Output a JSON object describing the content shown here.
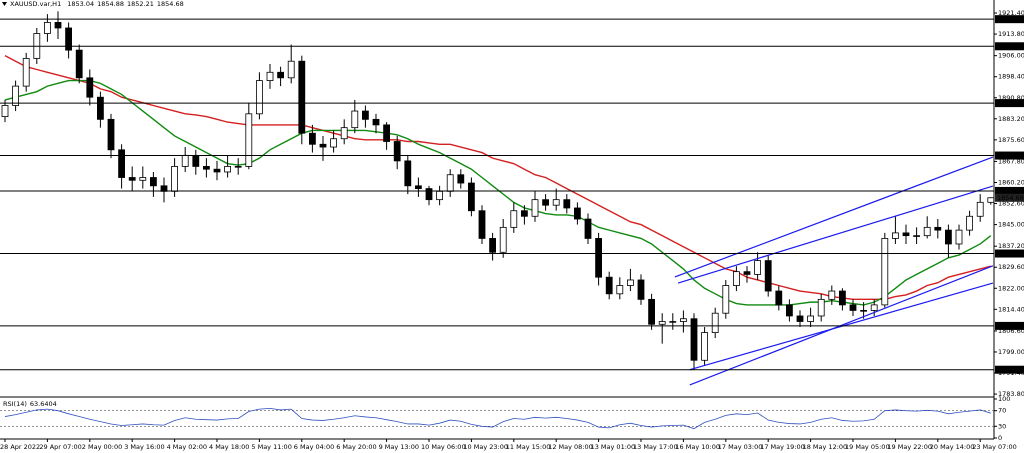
{
  "chart_data": {
    "type": "candlestick",
    "title": "XAUUSD.var,H1",
    "up_color": "#ffffff",
    "down_color": "#000000",
    "ylim": [
      1783.1,
      1926.1
    ],
    "yticks": [
      {
        "value": 1921.4,
        "label": "1921.40"
      },
      {
        "value": 1913.8,
        "label": "1913.80"
      },
      {
        "value": 1906,
        "label": "1906.00"
      },
      {
        "value": 1898.4,
        "label": "1898.40"
      },
      {
        "value": 1890.8,
        "label": "1890.80"
      },
      {
        "value": 1883.2,
        "label": "1883.20"
      },
      {
        "value": 1875.6,
        "label": "1875.60"
      },
      {
        "value": 1867.8,
        "label": "1867.80"
      },
      {
        "value": 1860.2,
        "label": "1860.20"
      },
      {
        "value": 1852.6,
        "label": "1852.60"
      },
      {
        "value": 1845,
        "label": "1845.00"
      },
      {
        "value": 1837.2,
        "label": "1837.20"
      },
      {
        "value": 1829.6,
        "label": "1829.60"
      },
      {
        "value": 1822,
        "label": "1822.00"
      },
      {
        "value": 1814.4,
        "label": "1814.40"
      },
      {
        "value": 1806.6,
        "label": "1806.60"
      },
      {
        "value": 1799,
        "label": "1799.00"
      },
      {
        "value": 1791.4,
        "label": "1791.40"
      },
      {
        "value": 1783.8,
        "label": "1783.80"
      }
    ],
    "price_lines": [
      1919.18,
      1909.39,
      1888.87,
      1869.93,
      1857.15,
      1834.55,
      1808.41,
      1792.59
    ],
    "categories": [
      "28 Apr 2022",
      null,
      null,
      null,
      "29 Apr 07:00",
      null,
      null,
      null,
      "2 May 00:00",
      null,
      null,
      null,
      "3 May 16:00",
      null,
      null,
      null,
      "4 May 02:00",
      null,
      null,
      null,
      "4 May 18:00",
      null,
      null,
      null,
      "5 May 11:00",
      null,
      null,
      null,
      "6 May 04:00",
      null,
      null,
      null,
      "6 May 20:00",
      null,
      null,
      null,
      "9 May 13:00",
      null,
      null,
      null,
      "10 May 06:00",
      null,
      null,
      null,
      "10 May 23:00",
      null,
      null,
      null,
      "11 May 15:00",
      null,
      null,
      null,
      "12 May 08:00",
      null,
      null,
      null,
      "13 May 01:00",
      null,
      null,
      null,
      "13 May 17:00",
      null,
      null,
      null,
      "16 May 10:00",
      null,
      null,
      null,
      "17 May 03:00",
      null,
      null,
      null,
      "17 May 19:00",
      null,
      null,
      null,
      "18 May 12:00",
      null,
      null,
      null,
      "19 May 05:00",
      null,
      null,
      null,
      "19 May 22:00",
      null,
      null,
      null,
      "20 May 14:00",
      null,
      null,
      null,
      "23 May 07:00",
      null
    ],
    "candles": [
      [
        1884,
        1890,
        1882,
        1888
      ],
      [
        1888,
        1897,
        1886,
        1895
      ],
      [
        1895,
        1907,
        1893,
        1905
      ],
      [
        1905,
        1916,
        1903,
        1914
      ],
      [
        1914,
        1921,
        1911,
        1918
      ],
      [
        1918,
        1922,
        1912,
        1916
      ],
      [
        1916,
        1918,
        1905,
        1908
      ],
      [
        1908,
        1910,
        1896,
        1898
      ],
      [
        1898,
        1901,
        1888,
        1891
      ],
      [
        1891,
        1893,
        1880,
        1883
      ],
      [
        1883,
        1885,
        1869,
        1872
      ],
      [
        1872,
        1874,
        1858,
        1862
      ],
      [
        1862,
        1866,
        1857,
        1861
      ],
      [
        1861,
        1866,
        1858,
        1862
      ],
      [
        1862,
        1864,
        1855,
        1859
      ],
      [
        1859,
        1862,
        1853,
        1857
      ],
      [
        1857,
        1869,
        1855,
        1866
      ],
      [
        1866,
        1873,
        1864,
        1870
      ],
      [
        1870,
        1872,
        1863,
        1866
      ],
      [
        1866,
        1869,
        1862,
        1865
      ],
      [
        1865,
        1868,
        1861,
        1864
      ],
      [
        1864,
        1870,
        1862,
        1866
      ],
      [
        1866,
        1869,
        1863,
        1866
      ],
      [
        1866,
        1889,
        1865,
        1885
      ],
      [
        1885,
        1900,
        1883,
        1897
      ],
      [
        1897,
        1903,
        1894,
        1900
      ],
      [
        1900,
        1902,
        1895,
        1898
      ],
      [
        1898,
        1910,
        1896,
        1904
      ],
      [
        1904,
        1906,
        1874,
        1878
      ],
      [
        1878,
        1881,
        1871,
        1874
      ],
      [
        1874,
        1877,
        1868,
        1873
      ],
      [
        1873,
        1879,
        1871,
        1876
      ],
      [
        1876,
        1883,
        1874,
        1880
      ],
      [
        1880,
        1890,
        1878,
        1886
      ],
      [
        1886,
        1888,
        1880,
        1883
      ],
      [
        1883,
        1885,
        1878,
        1881
      ],
      [
        1881,
        1882,
        1872,
        1875
      ],
      [
        1875,
        1877,
        1865,
        1868
      ],
      [
        1868,
        1870,
        1856,
        1859
      ],
      [
        1859,
        1862,
        1855,
        1858
      ],
      [
        1858,
        1859,
        1852,
        1854
      ],
      [
        1854,
        1859,
        1852,
        1857
      ],
      [
        1857,
        1865,
        1855,
        1863
      ],
      [
        1863,
        1865,
        1858,
        1860
      ],
      [
        1860,
        1862,
        1848,
        1850
      ],
      [
        1850,
        1852,
        1838,
        1840
      ],
      [
        1840,
        1842,
        1832,
        1835
      ],
      [
        1835,
        1847,
        1833,
        1844
      ],
      [
        1844,
        1853,
        1842,
        1850
      ],
      [
        1850,
        1852,
        1845,
        1848
      ],
      [
        1848,
        1857,
        1846,
        1854
      ],
      [
        1854,
        1856,
        1850,
        1852
      ],
      [
        1852,
        1858,
        1850,
        1854
      ],
      [
        1854,
        1856,
        1849,
        1851
      ],
      [
        1851,
        1853,
        1845,
        1847
      ],
      [
        1847,
        1849,
        1838,
        1840
      ],
      [
        1840,
        1842,
        1823,
        1826
      ],
      [
        1826,
        1828,
        1818,
        1820
      ],
      [
        1820,
        1826,
        1818,
        1823
      ],
      [
        1823,
        1829,
        1821,
        1825
      ],
      [
        1825,
        1827,
        1816,
        1818
      ],
      [
        1818,
        1820,
        1807,
        1809
      ],
      [
        1809,
        1813,
        1802,
        1810
      ],
      [
        1810,
        1813,
        1807,
        1810
      ],
      [
        1810,
        1814,
        1806,
        1811
      ],
      [
        1811,
        1813,
        1792.59,
        1796
      ],
      [
        1796,
        1808,
        1794,
        1806
      ],
      [
        1806,
        1815,
        1804,
        1813
      ],
      [
        1813,
        1825,
        1811,
        1823
      ],
      [
        1823,
        1830,
        1821,
        1828
      ],
      [
        1828,
        1830,
        1824,
        1827
      ],
      [
        1827,
        1835,
        1825,
        1832
      ],
      [
        1832,
        1834,
        1819,
        1821
      ],
      [
        1821,
        1823,
        1814,
        1816
      ],
      [
        1816,
        1818,
        1810,
        1812
      ],
      [
        1812,
        1814,
        1808,
        1810
      ],
      [
        1810,
        1815,
        1808,
        1812
      ],
      [
        1812,
        1820,
        1810,
        1818
      ],
      [
        1818,
        1823,
        1816,
        1821
      ],
      [
        1821,
        1822,
        1814,
        1816
      ],
      [
        1816,
        1818,
        1812,
        1814
      ],
      [
        1814,
        1817,
        1811,
        1814
      ],
      [
        1814,
        1818,
        1812,
        1816
      ],
      [
        1816,
        1842,
        1815,
        1840
      ],
      [
        1840,
        1848,
        1838,
        1842
      ],
      [
        1842,
        1845,
        1838,
        1841
      ],
      [
        1841,
        1844,
        1838,
        1841
      ],
      [
        1841,
        1848,
        1840,
        1844
      ],
      [
        1844,
        1847,
        1840,
        1843
      ],
      [
        1843,
        1845,
        1833,
        1838
      ],
      [
        1838,
        1845,
        1836,
        1843
      ],
      [
        1843,
        1850,
        1841,
        1848
      ],
      [
        1848,
        1856,
        1846,
        1853.04
      ],
      [
        1853.04,
        1854.88,
        1852.21,
        1854.68
      ]
    ],
    "moving_averages": [
      {
        "color": "#d42020",
        "values": [
          1906,
          1904,
          1902,
          1901,
          1900,
          1899,
          1898,
          1897,
          1896,
          1894,
          1893,
          1891,
          1890,
          1889,
          1888,
          1887,
          1886,
          1885,
          1884.6,
          1884,
          1883,
          1882,
          1881.5,
          1881,
          1881,
          1881,
          1881,
          1881,
          1881,
          1880,
          1879,
          1878,
          1877,
          1876,
          1875.6,
          1875.6,
          1875.6,
          1875.6,
          1875,
          1875,
          1874.5,
          1874,
          1874,
          1873,
          1872,
          1871,
          1869,
          1868,
          1867,
          1865,
          1863,
          1862,
          1860,
          1858,
          1856,
          1854,
          1852,
          1850,
          1848,
          1846,
          1845,
          1843,
          1841,
          1839,
          1837,
          1835,
          1833,
          1831,
          1829,
          1828,
          1826,
          1825,
          1824,
          1823,
          1822,
          1821,
          1820.5,
          1820,
          1819,
          1818.5,
          1818,
          1818,
          1818,
          1818,
          1819,
          1819.6,
          1821,
          1823,
          1824,
          1826,
          1827,
          1828,
          1829,
          1830
        ]
      },
      {
        "color": "#108a10",
        "values": [
          1890,
          1891,
          1892,
          1893,
          1895,
          1896,
          1897,
          1897,
          1897,
          1896,
          1894,
          1892,
          1889,
          1886,
          1883,
          1880,
          1877,
          1875,
          1873,
          1871,
          1869,
          1867,
          1866.5,
          1867,
          1869,
          1872,
          1874,
          1876,
          1878,
          1879,
          1879,
          1879,
          1879,
          1879,
          1879,
          1878.5,
          1878,
          1877.4,
          1876,
          1874,
          1872.5,
          1871,
          1869,
          1867,
          1865,
          1862,
          1859,
          1856,
          1853,
          1851,
          1850,
          1849,
          1848.5,
          1848.5,
          1848,
          1846,
          1844,
          1843,
          1842,
          1841,
          1840,
          1838,
          1835,
          1832,
          1829,
          1825,
          1822,
          1820,
          1818,
          1816.5,
          1816,
          1816,
          1816,
          1816,
          1816,
          1816.5,
          1817,
          1817,
          1817.5,
          1817,
          1816.5,
          1816,
          1817,
          1819,
          1822,
          1825,
          1827,
          1829,
          1831,
          1833,
          1834,
          1836,
          1838,
          1841
        ]
      }
    ],
    "trendlines": [
      {
        "color": "#1a1aee",
        "x": [
          63.2,
          93.2
        ],
        "y": [
          1826.1,
          1869.4
        ]
      },
      {
        "color": "#1a1aee",
        "x": [
          63.5,
          93.2
        ],
        "y": [
          1823.9,
          1858.9
        ]
      },
      {
        "color": "#1a1aee",
        "x": [
          64.6,
          93.2
        ],
        "y": [
          1787.1,
          1830.1
        ]
      },
      {
        "color": "#1a1aee",
        "x": [
          64.6,
          93.2
        ],
        "y": [
          1792.6,
          1823.9
        ]
      }
    ],
    "indicator": {
      "title": "RSI(14)",
      "color": "#3050c0",
      "ylim": [
        0,
        100
      ],
      "yticks": [
        0,
        30,
        70,
        100
      ],
      "values": [
        55,
        60,
        66,
        72,
        74,
        70,
        62,
        55,
        48,
        42,
        36,
        32,
        34,
        36,
        34,
        33,
        45,
        52,
        48,
        47,
        46,
        49,
        50,
        68,
        74,
        76,
        72,
        74,
        50,
        46,
        45,
        48,
        52,
        57,
        54,
        52,
        47,
        42,
        36,
        36,
        33,
        38,
        46,
        43,
        35,
        30,
        28,
        42,
        50,
        48,
        53,
        51,
        53,
        50,
        46,
        40,
        28,
        26,
        34,
        38,
        32,
        28,
        31,
        32,
        33,
        24,
        40,
        48,
        58,
        62,
        60,
        64,
        46,
        40,
        37,
        36,
        40,
        48,
        52,
        45,
        43,
        44,
        48,
        70,
        72,
        70,
        69,
        71,
        69,
        62,
        66,
        69,
        72,
        63.6404
      ]
    }
  }
}
